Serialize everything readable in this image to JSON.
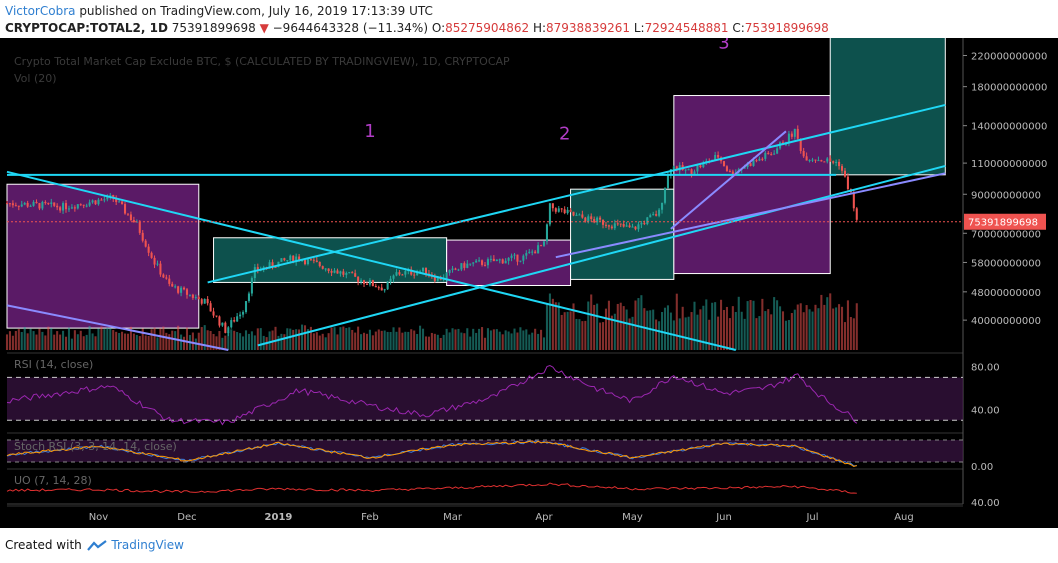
{
  "header": {
    "author": "VictorCobra",
    "published": "published on TradingView.com, July 16, 2019 17:13:39 UTC",
    "symbol": "CRYPTOCAP:TOTAL2, 1D",
    "last": "75391899698",
    "change_arrow": "▼",
    "change": "−9644643328 (−11.34%)",
    "o_label": "O:",
    "o_val": "85275904862",
    "h_label": "H:",
    "h_val": "87938839261",
    "l_label": "L:",
    "l_val": "72924548881",
    "c_label": "C:",
    "c_val": "75391899698"
  },
  "footer": {
    "created": "Created with",
    "brand": "TradingView"
  },
  "colors": {
    "background": "#000000",
    "up": "#26a69a",
    "down": "#ef5350",
    "trendline": "#1fd7f5",
    "trendline2": "#8a8aff",
    "box_purple": "#6a1e78",
    "box_teal": "#0f5f5a",
    "rsi_line": "#9b27b0",
    "uo_line": "#e03030",
    "stoch_k": "#3d7bd9",
    "stoch_d": "#ff9800",
    "axis_text": "#bbbbbb"
  },
  "chart_data": {
    "type": "candlestick",
    "title": "Crypto Total Market Cap Exclude BTC, $ (CALCULATED BY TRADINGVIEW), 1D, CRYPTOCAP",
    "volume_label": "Vol (20)",
    "y_scale": "log",
    "y_ticks": [
      "220000000000",
      "180000000000",
      "140000000000",
      "110000000000",
      "90000000000",
      "70000000000",
      "58000000000",
      "48000000000",
      "40000000000"
    ],
    "y_tick_values": [
      220000000000,
      180000000000,
      140000000000,
      110000000000,
      90000000000,
      70000000000,
      58000000000,
      48000000000,
      40000000000
    ],
    "x_labels": [
      "Nov",
      "Dec",
      "2019",
      "Feb",
      "Mar",
      "Apr",
      "May",
      "Jun",
      "Jul",
      "Aug"
    ],
    "x_label_dates": [
      "2018-11-01",
      "2018-12-01",
      "2019-01-01",
      "2019-02-01",
      "2019-03-01",
      "2019-04-01",
      "2019-05-01",
      "2019-06-01",
      "2019-07-01",
      "2019-08-01"
    ],
    "last_price_label": "75391899698",
    "last_price": 75391899698,
    "wave_labels": [
      "1",
      "2",
      "3"
    ],
    "wave_label_dates": [
      "2019-02-01",
      "2019-04-08",
      "2019-06-01"
    ],
    "wave_label_values": [
      130000000000,
      128000000000,
      230000000000
    ],
    "price_path": {
      "dates": [
        "2018-10-01",
        "2018-10-20",
        "2018-11-06",
        "2018-11-14",
        "2018-11-20",
        "2018-11-25",
        "2018-12-07",
        "2018-12-14",
        "2018-12-20",
        "2018-12-24",
        "2019-01-07",
        "2019-01-15",
        "2019-02-06",
        "2019-02-10",
        "2019-02-20",
        "2019-02-24",
        "2019-03-05",
        "2019-03-25",
        "2019-04-01",
        "2019-04-03",
        "2019-04-12",
        "2019-05-01",
        "2019-05-10",
        "2019-05-12",
        "2019-05-14",
        "2019-05-20",
        "2019-05-30",
        "2019-06-03",
        "2019-06-10",
        "2019-06-17",
        "2019-06-25",
        "2019-06-28",
        "2019-07-03",
        "2019-07-10",
        "2019-07-14",
        "2019-07-16"
      ],
      "values": [
        85000000000,
        83000000000,
        88000000000,
        74000000000,
        58000000000,
        50000000000,
        45000000000,
        37500000000,
        43000000000,
        55000000000,
        60000000000,
        57000000000,
        49000000000,
        54000000000,
        55000000000,
        52000000000,
        57000000000,
        60000000000,
        65000000000,
        83000000000,
        78000000000,
        72000000000,
        80000000000,
        95000000000,
        108000000000,
        104000000000,
        115000000000,
        103000000000,
        110000000000,
        117000000000,
        135000000000,
        115000000000,
        113000000000,
        110000000000,
        90000000000,
        75391899698
      ]
    },
    "trendlines": [
      {
        "name": "horizontal-resistance",
        "from": [
          "2018-10-01",
          102000000000
        ],
        "to": [
          "2019-07-09",
          102000000000
        ]
      },
      {
        "name": "upper-channel",
        "from": [
          "2018-12-08",
          51000000000
        ],
        "to": [
          "2019-08-15",
          160000000000
        ]
      },
      {
        "name": "lower-channel",
        "from": [
          "2018-12-25",
          34000000000
        ],
        "to": [
          "2019-08-15",
          108000000000
        ]
      },
      {
        "name": "falling-resistance",
        "from": [
          "2018-10-01",
          104000000000
        ],
        "to": [
          "2019-06-05",
          33000000000
        ]
      },
      {
        "name": "falling-support",
        "from": [
          "2018-10-01",
          44000000000
        ],
        "to": [
          "2018-12-15",
          33000000000
        ]
      },
      {
        "name": "inner-line",
        "from": [
          "2019-05-14",
          72000000000
        ],
        "to": [
          "2019-06-22",
          135000000000
        ]
      },
      {
        "name": "inner-support",
        "from": [
          "2019-04-05",
          60000000000
        ],
        "to": [
          "2019-08-15",
          103000000000
        ]
      }
    ],
    "boxes": [
      {
        "color": "purple",
        "from": [
          "2018-10-01",
          96000000000
        ],
        "to": [
          "2018-12-05",
          38000000000
        ]
      },
      {
        "color": "teal",
        "from": [
          "2018-12-10",
          68000000000
        ],
        "to": [
          "2019-02-27",
          51000000000
        ]
      },
      {
        "color": "purple",
        "from": [
          "2019-02-27",
          67000000000
        ],
        "to": [
          "2019-04-10",
          50000000000
        ]
      },
      {
        "color": "teal",
        "from": [
          "2019-04-10",
          93000000000
        ],
        "to": [
          "2019-05-15",
          52000000000
        ]
      },
      {
        "color": "purple",
        "from": [
          "2019-05-15",
          170000000000
        ],
        "to": [
          "2019-07-07",
          54000000000
        ]
      },
      {
        "color": "teal",
        "from": [
          "2019-07-07",
          260000000000
        ],
        "to": [
          "2019-08-15",
          102000000000
        ]
      }
    ],
    "rsi": {
      "label": "RSI (14, close)",
      "ticks": [
        "80.00",
        "40.00"
      ],
      "tick_values": [
        80,
        40
      ],
      "bands": [
        70,
        30
      ],
      "dates": [
        "2018-10-01",
        "2018-11-05",
        "2018-11-25",
        "2018-12-15",
        "2019-01-08",
        "2019-02-08",
        "2019-02-20",
        "2019-03-15",
        "2019-04-03",
        "2019-04-20",
        "2019-05-01",
        "2019-05-15",
        "2019-06-01",
        "2019-06-15",
        "2019-06-26",
        "2019-07-04",
        "2019-07-16"
      ],
      "values": [
        48,
        62,
        30,
        28,
        58,
        40,
        35,
        52,
        80,
        58,
        48,
        72,
        55,
        60,
        72,
        52,
        30
      ]
    },
    "stoch_rsi": {
      "label": "Stoch RSI (3, 3, 14, 14, close)",
      "ticks": [
        "0.00"
      ],
      "tick_values": [
        0
      ],
      "dates": [
        "2018-10-01",
        "2018-11-01",
        "2018-12-01",
        "2019-01-01",
        "2019-02-01",
        "2019-03-01",
        "2019-04-01",
        "2019-05-01",
        "2019-06-01",
        "2019-06-25",
        "2019-07-16"
      ],
      "values": [
        40,
        70,
        20,
        80,
        30,
        75,
        85,
        30,
        80,
        70,
        0
      ]
    },
    "uo": {
      "label": "UO (7, 14, 28)",
      "ticks": [
        "40.00"
      ],
      "tick_values": [
        40
      ],
      "dates": [
        "2018-10-01",
        "2018-11-01",
        "2018-12-01",
        "2019-01-01",
        "2019-02-01",
        "2019-03-01",
        "2019-04-03",
        "2019-05-01",
        "2019-06-01",
        "2019-06-25",
        "2019-07-16"
      ],
      "values": [
        47,
        48,
        45,
        49,
        47,
        50,
        55,
        49,
        50,
        52,
        44
      ]
    }
  }
}
